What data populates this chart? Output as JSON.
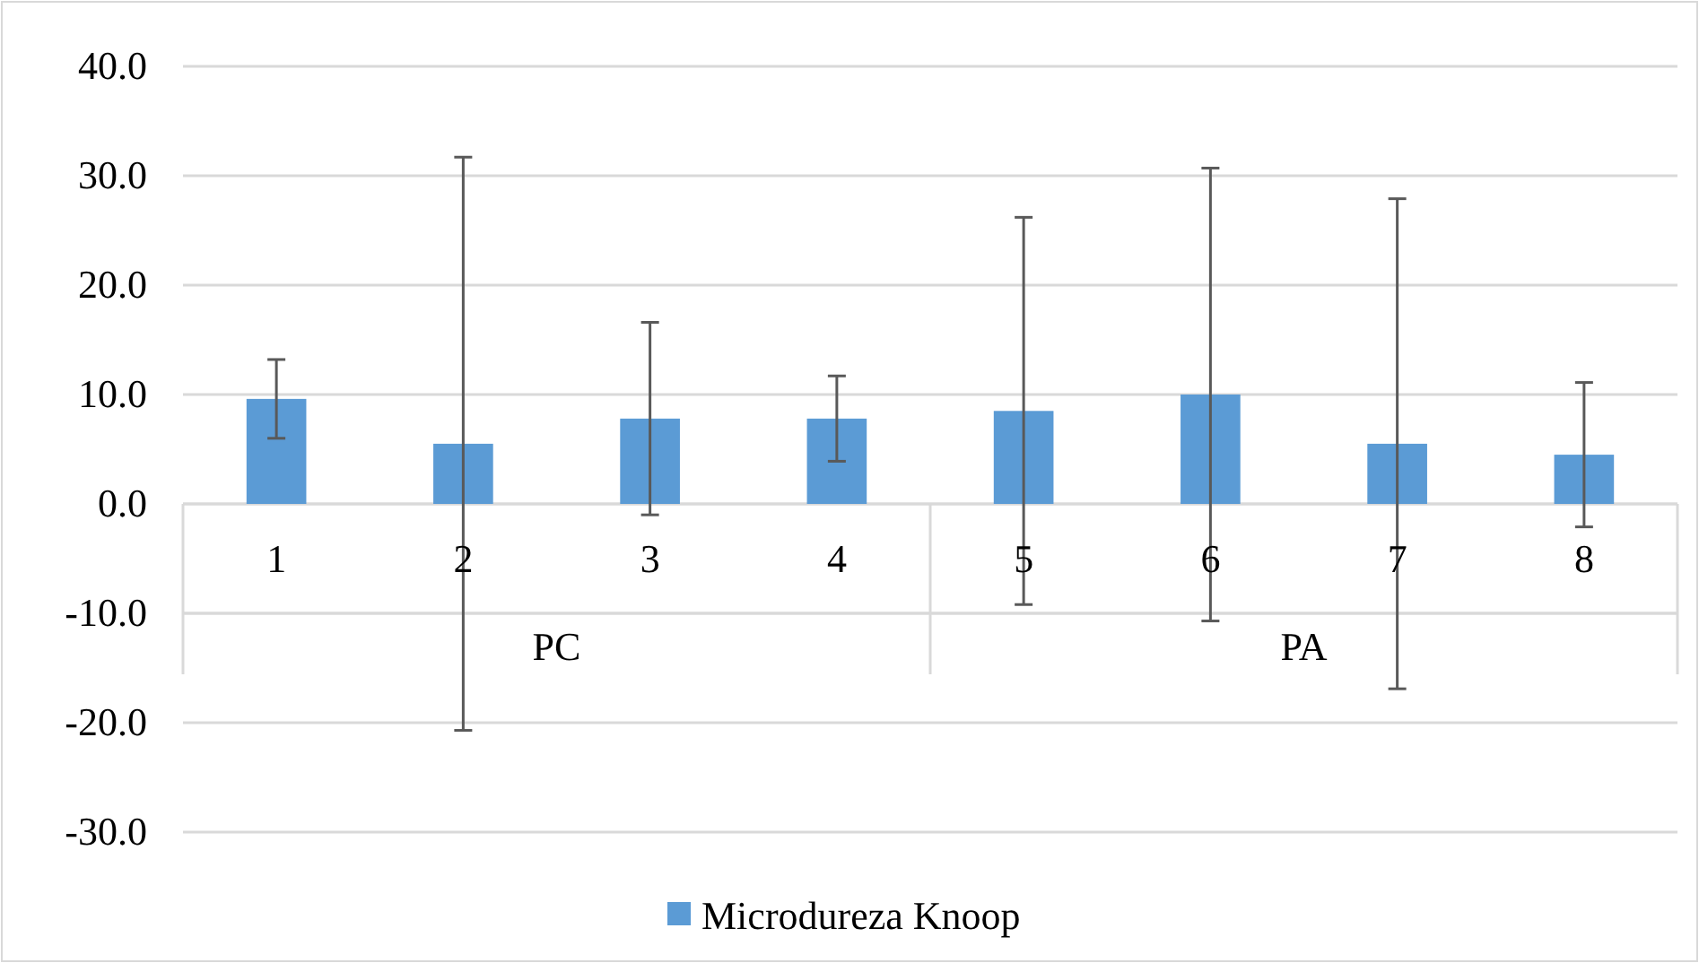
{
  "chart_data": {
    "type": "bar",
    "categories": [
      "1",
      "2",
      "3",
      "4",
      "5",
      "6",
      "7",
      "8"
    ],
    "series": [
      {
        "name": "Microdureza Knoop",
        "color": "#5b9bd5",
        "values": [
          9.6,
          5.5,
          7.8,
          7.8,
          8.5,
          10.0,
          5.5,
          4.5
        ],
        "errors": [
          3.6,
          26.2,
          8.8,
          3.9,
          17.7,
          20.7,
          22.4,
          6.6
        ]
      }
    ],
    "annotations": [
      "PC",
      "PA"
    ],
    "ylim": [
      -30,
      40
    ],
    "yticks": [
      {
        "value": -30,
        "label": "-30.0"
      },
      {
        "value": -20,
        "label": "-20.0"
      },
      {
        "value": -10,
        "label": "-10.0"
      },
      {
        "value": 0,
        "label": "0.0"
      },
      {
        "value": 10,
        "label": "10.0"
      },
      {
        "value": 20,
        "label": "20.0"
      },
      {
        "value": 30,
        "label": "30.0"
      },
      {
        "value": 40,
        "label": "40.0"
      }
    ],
    "grid": "y",
    "legend": "bottom"
  }
}
